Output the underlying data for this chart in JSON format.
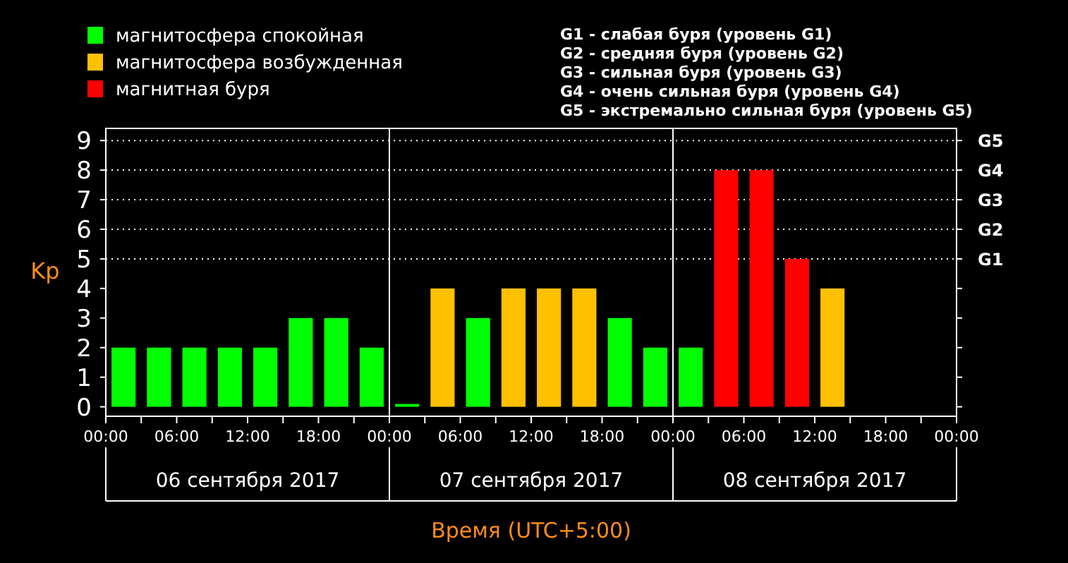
{
  "chart_data": {
    "type": "bar",
    "ylabel": "Kp",
    "xlabel": "Время (UTC+5:00)",
    "x": [
      "2017-09-06T01:30",
      "2017-09-06T04:30",
      "2017-09-06T07:30",
      "2017-09-06T10:30",
      "2017-09-06T13:30",
      "2017-09-06T16:30",
      "2017-09-06T19:30",
      "2017-09-06T22:30",
      "2017-09-07T01:30",
      "2017-09-07T04:30",
      "2017-09-07T07:30",
      "2017-09-07T10:30",
      "2017-09-07T13:30",
      "2017-09-07T16:30",
      "2017-09-07T19:30",
      "2017-09-07T22:30",
      "2017-09-08T01:30",
      "2017-09-08T04:30",
      "2017-09-08T07:30",
      "2017-09-08T10:30",
      "2017-09-08T13:30"
    ],
    "series": [
      {
        "name": "магнитосфера спокойная",
        "color": "#00ff00",
        "values": [
          2,
          2,
          2,
          2,
          2,
          3,
          3,
          2,
          0,
          null,
          3,
          null,
          null,
          null,
          3,
          2,
          2,
          null,
          null,
          null,
          null
        ]
      },
      {
        "name": "магнитосфера возбужденная",
        "color": "#ffc000",
        "values": [
          null,
          null,
          null,
          null,
          null,
          null,
          null,
          null,
          null,
          4,
          null,
          4,
          4,
          4,
          null,
          null,
          null,
          null,
          null,
          null,
          4
        ]
      },
      {
        "name": "магнитная буря",
        "color": "#ff0000",
        "values": [
          null,
          null,
          null,
          null,
          null,
          null,
          null,
          null,
          null,
          null,
          null,
          null,
          null,
          null,
          null,
          null,
          null,
          8,
          8,
          5,
          null
        ]
      }
    ],
    "xlim": [
      "2017-09-06T00:00",
      "2017-09-09T00:00"
    ],
    "xticks": [
      {
        "value": "2017-09-06T00:00",
        "label": "00:00"
      },
      {
        "value": "2017-09-06T03:00",
        "label": null
      },
      {
        "value": "2017-09-06T06:00",
        "label": "06:00"
      },
      {
        "value": "2017-09-06T09:00",
        "label": null
      },
      {
        "value": "2017-09-06T12:00",
        "label": "12:00"
      },
      {
        "value": "2017-09-06T15:00",
        "label": null
      },
      {
        "value": "2017-09-06T18:00",
        "label": "18:00"
      },
      {
        "value": "2017-09-06T21:00",
        "label": null
      },
      {
        "value": "2017-09-07T00:00",
        "label": "00:00"
      },
      {
        "value": "2017-09-07T03:00",
        "label": null
      },
      {
        "value": "2017-09-07T06:00",
        "label": "06:00"
      },
      {
        "value": "2017-09-07T09:00",
        "label": null
      },
      {
        "value": "2017-09-07T12:00",
        "label": "12:00"
      },
      {
        "value": "2017-09-07T15:00",
        "label": null
      },
      {
        "value": "2017-09-07T18:00",
        "label": "18:00"
      },
      {
        "value": "2017-09-07T21:00",
        "label": null
      },
      {
        "value": "2017-09-08T00:00",
        "label": "00:00"
      },
      {
        "value": "2017-09-08T03:00",
        "label": null
      },
      {
        "value": "2017-09-08T06:00",
        "label": "06:00"
      },
      {
        "value": "2017-09-08T09:00",
        "label": null
      },
      {
        "value": "2017-09-08T12:00",
        "label": "12:00"
      },
      {
        "value": "2017-09-08T15:00",
        "label": null
      },
      {
        "value": "2017-09-08T18:00",
        "label": "18:00"
      },
      {
        "value": "2017-09-08T21:00",
        "label": null
      },
      {
        "value": "2017-09-09T00:00",
        "label": "00:00"
      }
    ],
    "ylim": [
      -0.32,
      9.41
    ],
    "yticks": [
      0,
      1,
      2,
      3,
      4,
      5,
      6,
      7,
      8,
      9
    ],
    "ref_lines": [
      {
        "axis": "x",
        "value": "2017-09-07T00:00",
        "color": "#ffffff",
        "line_style": "solid"
      },
      {
        "axis": "x",
        "value": "2017-09-08T00:00",
        "color": "#ffffff",
        "line_style": "solid"
      },
      {
        "axis": "y",
        "value": 5,
        "label": "G1",
        "color": "#ffffff",
        "line_style": "dotted"
      },
      {
        "axis": "y",
        "value": 6,
        "label": "G2",
        "color": "#ffffff",
        "line_style": "dotted"
      },
      {
        "axis": "y",
        "value": 7,
        "label": "G3",
        "color": "#ffffff",
        "line_style": "dotted"
      },
      {
        "axis": "y",
        "value": 8,
        "label": "G4",
        "color": "#ffffff",
        "line_style": "dotted"
      },
      {
        "axis": "y",
        "value": 9,
        "label": "G5",
        "color": "#ffffff",
        "line_style": "dotted"
      }
    ],
    "annotations": [
      "G1 - слабая буря (уровень G1)",
      "G2 - средняя буря (уровень G2)",
      "G3 - сильная буря (уровень G3)",
      "G4 - очень сильная буря (уровень G4)",
      "G5 - экстремально сильная буря (уровень G5)",
      "06 сентября 2017",
      "07 сентября 2017",
      "08 сентября 2017"
    ],
    "legend": "top left",
    "grid": false
  }
}
